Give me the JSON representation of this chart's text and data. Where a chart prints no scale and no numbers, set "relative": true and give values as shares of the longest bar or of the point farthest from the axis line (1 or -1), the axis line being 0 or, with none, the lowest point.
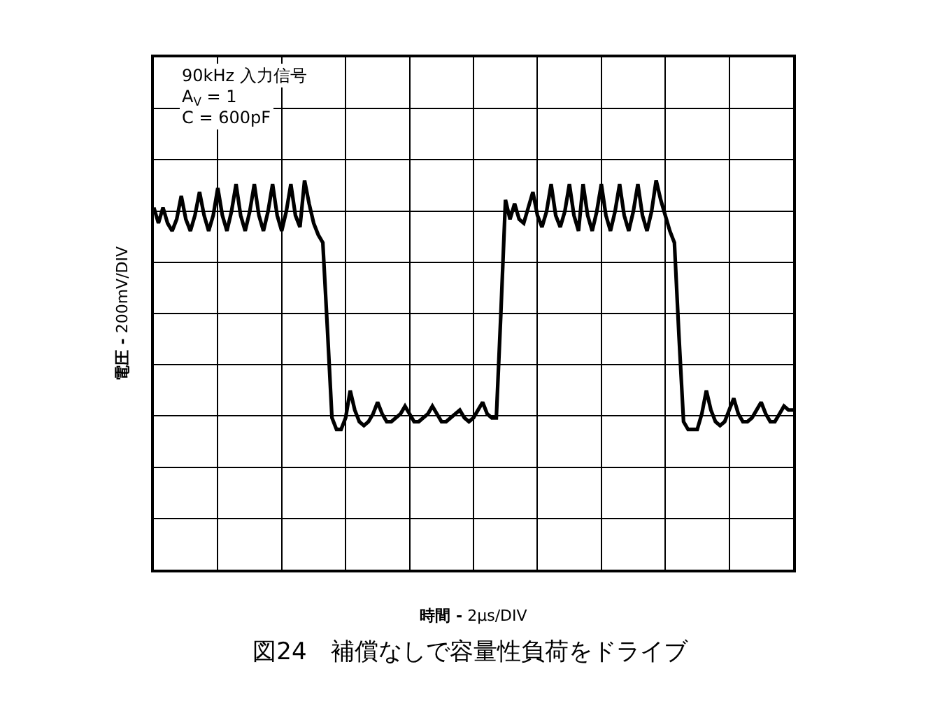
{
  "chart_data": {
    "type": "line",
    "relative": true,
    "title": "図24　補償なしで容量性負荷をドライブ",
    "xlabel": "時間 - 2μs/DIV",
    "ylabel": "電圧 - 200mV/DIV",
    "annotations": [
      "90kHz 入力信号",
      "A$_{V}$ = 1",
      "C = 600pF"
    ],
    "categories": [
      null,
      null,
      null,
      null,
      null,
      null,
      null,
      null,
      null,
      null,
      null,
      null,
      null,
      null,
      null,
      null,
      null,
      null,
      null,
      null,
      null,
      null,
      null,
      null,
      null,
      null,
      null,
      null,
      null,
      null,
      null,
      null,
      null,
      null,
      null,
      null,
      null,
      null,
      null,
      null,
      null,
      null,
      null,
      null,
      null,
      null,
      null,
      null,
      null,
      null,
      null,
      null,
      null,
      null,
      null,
      null,
      null,
      null,
      null,
      null,
      null,
      null,
      null,
      null,
      null,
      null,
      null,
      null,
      null,
      null,
      null,
      null,
      null,
      null,
      null,
      null,
      null,
      null,
      null,
      null,
      null,
      null,
      null,
      null,
      null,
      null,
      null,
      null,
      null,
      null,
      null,
      null,
      null,
      null,
      null,
      null,
      null,
      null,
      null,
      null,
      null,
      null,
      null,
      null,
      null,
      null,
      null,
      null,
      null,
      null,
      null,
      null,
      null,
      null,
      null,
      null,
      null,
      null,
      null,
      null,
      null,
      null,
      null,
      null,
      null,
      null,
      null,
      null,
      null,
      null,
      null,
      null,
      null,
      null,
      null,
      null,
      null,
      null,
      null,
      null,
      null
    ],
    "series": [
      {
        "color": "#000000",
        "values": [
          0.93,
          0.89,
          0.93,
          0.89,
          0.87,
          0.9,
          0.96,
          0.9,
          0.87,
          0.91,
          0.97,
          0.91,
          0.87,
          0.91,
          0.98,
          0.91,
          0.87,
          0.92,
          0.99,
          0.91,
          0.87,
          0.92,
          0.99,
          0.91,
          0.87,
          0.92,
          0.99,
          0.91,
          0.87,
          0.92,
          0.99,
          0.91,
          0.88,
          1.0,
          0.94,
          0.89,
          0.86,
          0.84,
          0.62,
          0.39,
          0.36,
          0.36,
          0.39,
          0.46,
          0.41,
          0.38,
          0.37,
          0.38,
          0.4,
          0.43,
          0.4,
          0.38,
          0.38,
          0.39,
          0.4,
          0.42,
          0.4,
          0.38,
          0.38,
          0.39,
          0.4,
          0.42,
          0.4,
          0.38,
          0.38,
          0.39,
          0.4,
          0.41,
          0.39,
          0.38,
          0.39,
          0.41,
          0.43,
          0.4,
          0.39,
          0.39,
          0.66,
          0.95,
          0.9,
          0.94,
          0.9,
          0.89,
          0.93,
          0.97,
          0.91,
          0.88,
          0.92,
          0.99,
          0.91,
          0.88,
          0.92,
          0.99,
          0.91,
          0.87,
          0.99,
          0.91,
          0.87,
          0.92,
          0.99,
          0.91,
          0.87,
          0.92,
          0.99,
          0.91,
          0.87,
          0.92,
          0.99,
          0.91,
          0.87,
          0.92,
          1.0,
          0.95,
          0.91,
          0.87,
          0.84,
          0.6,
          0.38,
          0.36,
          0.36,
          0.36,
          0.4,
          0.46,
          0.41,
          0.38,
          0.37,
          0.38,
          0.41,
          0.44,
          0.4,
          0.38,
          0.38,
          0.39,
          0.41,
          0.43,
          0.4,
          0.38,
          0.38,
          0.4,
          0.42,
          0.41,
          0.41
        ]
      }
    ],
    "grid": true,
    "tick_labels": false,
    "marker": "none",
    "line_style": "solid"
  }
}
